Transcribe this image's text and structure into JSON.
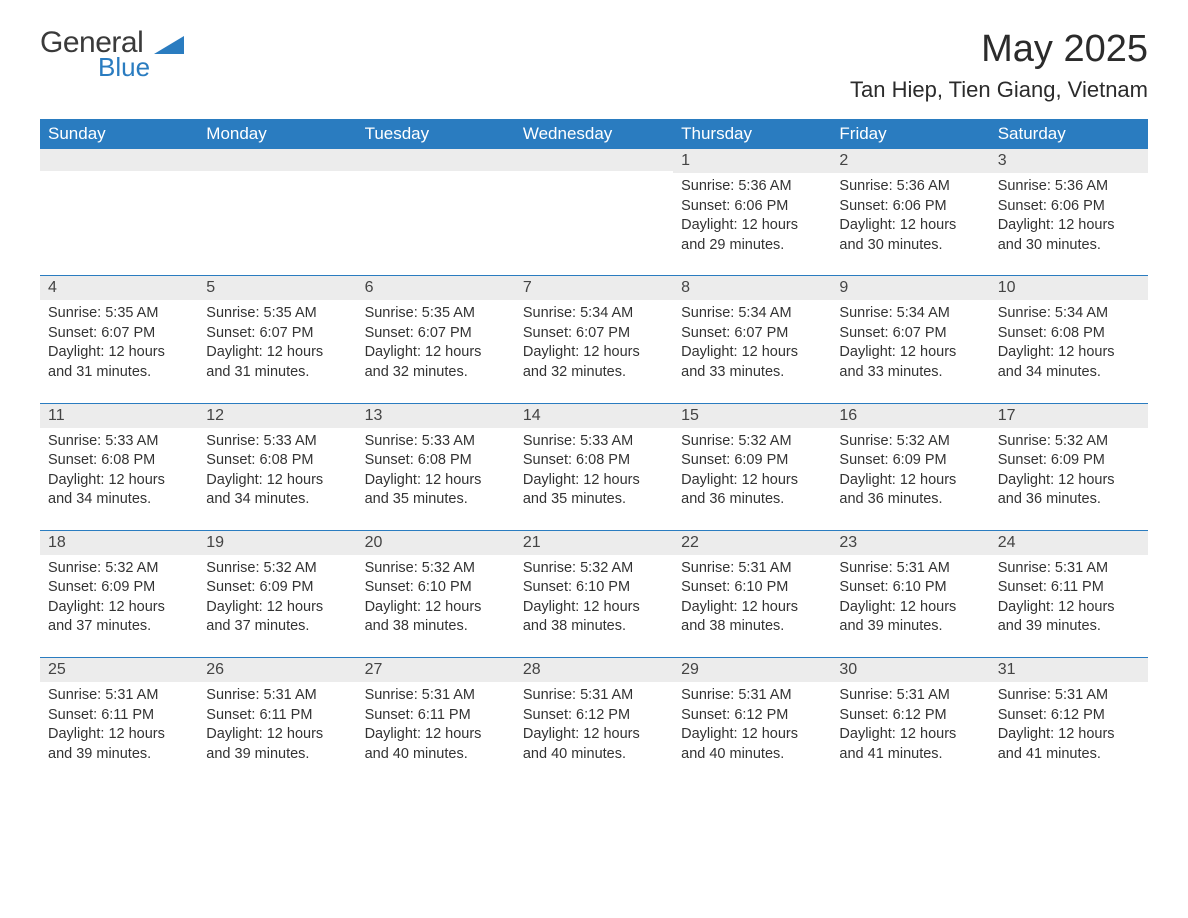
{
  "brand": {
    "word1": "General",
    "word2": "Blue",
    "logo_color": "#2a7cc0"
  },
  "title": "May 2025",
  "location": "Tan Hiep, Tien Giang, Vietnam",
  "colors": {
    "header_bg": "#2a7cc0",
    "header_text": "#ffffff",
    "daynum_bg": "#ececec",
    "body_text": "#333333",
    "rule": "#2a7cc0",
    "page_bg": "#ffffff"
  },
  "day_labels": [
    "Sunday",
    "Monday",
    "Tuesday",
    "Wednesday",
    "Thursday",
    "Friday",
    "Saturday"
  ],
  "weeks": [
    [
      {
        "n": "",
        "sunrise": "",
        "sunset": "",
        "daylight": ""
      },
      {
        "n": "",
        "sunrise": "",
        "sunset": "",
        "daylight": ""
      },
      {
        "n": "",
        "sunrise": "",
        "sunset": "",
        "daylight": ""
      },
      {
        "n": "",
        "sunrise": "",
        "sunset": "",
        "daylight": ""
      },
      {
        "n": "1",
        "sunrise": "Sunrise: 5:36 AM",
        "sunset": "Sunset: 6:06 PM",
        "daylight": "Daylight: 12 hours and 29 minutes."
      },
      {
        "n": "2",
        "sunrise": "Sunrise: 5:36 AM",
        "sunset": "Sunset: 6:06 PM",
        "daylight": "Daylight: 12 hours and 30 minutes."
      },
      {
        "n": "3",
        "sunrise": "Sunrise: 5:36 AM",
        "sunset": "Sunset: 6:06 PM",
        "daylight": "Daylight: 12 hours and 30 minutes."
      }
    ],
    [
      {
        "n": "4",
        "sunrise": "Sunrise: 5:35 AM",
        "sunset": "Sunset: 6:07 PM",
        "daylight": "Daylight: 12 hours and 31 minutes."
      },
      {
        "n": "5",
        "sunrise": "Sunrise: 5:35 AM",
        "sunset": "Sunset: 6:07 PM",
        "daylight": "Daylight: 12 hours and 31 minutes."
      },
      {
        "n": "6",
        "sunrise": "Sunrise: 5:35 AM",
        "sunset": "Sunset: 6:07 PM",
        "daylight": "Daylight: 12 hours and 32 minutes."
      },
      {
        "n": "7",
        "sunrise": "Sunrise: 5:34 AM",
        "sunset": "Sunset: 6:07 PM",
        "daylight": "Daylight: 12 hours and 32 minutes."
      },
      {
        "n": "8",
        "sunrise": "Sunrise: 5:34 AM",
        "sunset": "Sunset: 6:07 PM",
        "daylight": "Daylight: 12 hours and 33 minutes."
      },
      {
        "n": "9",
        "sunrise": "Sunrise: 5:34 AM",
        "sunset": "Sunset: 6:07 PM",
        "daylight": "Daylight: 12 hours and 33 minutes."
      },
      {
        "n": "10",
        "sunrise": "Sunrise: 5:34 AM",
        "sunset": "Sunset: 6:08 PM",
        "daylight": "Daylight: 12 hours and 34 minutes."
      }
    ],
    [
      {
        "n": "11",
        "sunrise": "Sunrise: 5:33 AM",
        "sunset": "Sunset: 6:08 PM",
        "daylight": "Daylight: 12 hours and 34 minutes."
      },
      {
        "n": "12",
        "sunrise": "Sunrise: 5:33 AM",
        "sunset": "Sunset: 6:08 PM",
        "daylight": "Daylight: 12 hours and 34 minutes."
      },
      {
        "n": "13",
        "sunrise": "Sunrise: 5:33 AM",
        "sunset": "Sunset: 6:08 PM",
        "daylight": "Daylight: 12 hours and 35 minutes."
      },
      {
        "n": "14",
        "sunrise": "Sunrise: 5:33 AM",
        "sunset": "Sunset: 6:08 PM",
        "daylight": "Daylight: 12 hours and 35 minutes."
      },
      {
        "n": "15",
        "sunrise": "Sunrise: 5:32 AM",
        "sunset": "Sunset: 6:09 PM",
        "daylight": "Daylight: 12 hours and 36 minutes."
      },
      {
        "n": "16",
        "sunrise": "Sunrise: 5:32 AM",
        "sunset": "Sunset: 6:09 PM",
        "daylight": "Daylight: 12 hours and 36 minutes."
      },
      {
        "n": "17",
        "sunrise": "Sunrise: 5:32 AM",
        "sunset": "Sunset: 6:09 PM",
        "daylight": "Daylight: 12 hours and 36 minutes."
      }
    ],
    [
      {
        "n": "18",
        "sunrise": "Sunrise: 5:32 AM",
        "sunset": "Sunset: 6:09 PM",
        "daylight": "Daylight: 12 hours and 37 minutes."
      },
      {
        "n": "19",
        "sunrise": "Sunrise: 5:32 AM",
        "sunset": "Sunset: 6:09 PM",
        "daylight": "Daylight: 12 hours and 37 minutes."
      },
      {
        "n": "20",
        "sunrise": "Sunrise: 5:32 AM",
        "sunset": "Sunset: 6:10 PM",
        "daylight": "Daylight: 12 hours and 38 minutes."
      },
      {
        "n": "21",
        "sunrise": "Sunrise: 5:32 AM",
        "sunset": "Sunset: 6:10 PM",
        "daylight": "Daylight: 12 hours and 38 minutes."
      },
      {
        "n": "22",
        "sunrise": "Sunrise: 5:31 AM",
        "sunset": "Sunset: 6:10 PM",
        "daylight": "Daylight: 12 hours and 38 minutes."
      },
      {
        "n": "23",
        "sunrise": "Sunrise: 5:31 AM",
        "sunset": "Sunset: 6:10 PM",
        "daylight": "Daylight: 12 hours and 39 minutes."
      },
      {
        "n": "24",
        "sunrise": "Sunrise: 5:31 AM",
        "sunset": "Sunset: 6:11 PM",
        "daylight": "Daylight: 12 hours and 39 minutes."
      }
    ],
    [
      {
        "n": "25",
        "sunrise": "Sunrise: 5:31 AM",
        "sunset": "Sunset: 6:11 PM",
        "daylight": "Daylight: 12 hours and 39 minutes."
      },
      {
        "n": "26",
        "sunrise": "Sunrise: 5:31 AM",
        "sunset": "Sunset: 6:11 PM",
        "daylight": "Daylight: 12 hours and 39 minutes."
      },
      {
        "n": "27",
        "sunrise": "Sunrise: 5:31 AM",
        "sunset": "Sunset: 6:11 PM",
        "daylight": "Daylight: 12 hours and 40 minutes."
      },
      {
        "n": "28",
        "sunrise": "Sunrise: 5:31 AM",
        "sunset": "Sunset: 6:12 PM",
        "daylight": "Daylight: 12 hours and 40 minutes."
      },
      {
        "n": "29",
        "sunrise": "Sunrise: 5:31 AM",
        "sunset": "Sunset: 6:12 PM",
        "daylight": "Daylight: 12 hours and 40 minutes."
      },
      {
        "n": "30",
        "sunrise": "Sunrise: 5:31 AM",
        "sunset": "Sunset: 6:12 PM",
        "daylight": "Daylight: 12 hours and 41 minutes."
      },
      {
        "n": "31",
        "sunrise": "Sunrise: 5:31 AM",
        "sunset": "Sunset: 6:12 PM",
        "daylight": "Daylight: 12 hours and 41 minutes."
      }
    ]
  ]
}
